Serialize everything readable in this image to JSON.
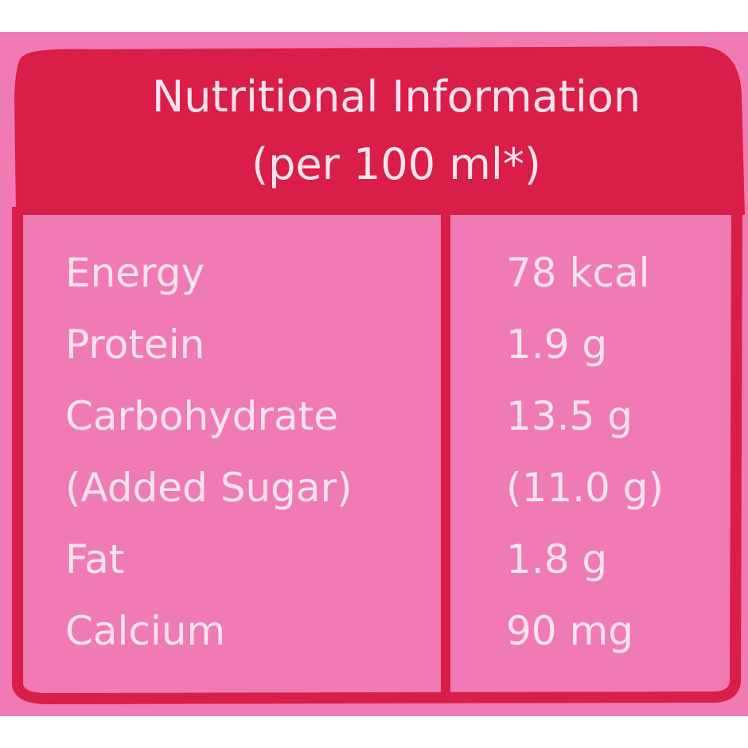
{
  "header": {
    "title": "Nutritional Information",
    "subtitle": "(per 100 ml*)"
  },
  "table": {
    "rows": [
      [
        "Energy",
        "78 kcal"
      ],
      [
        "Protein",
        "1.9 g"
      ],
      [
        "Carbohydrate",
        "13.5 g"
      ],
      [
        "(Added Sugar)",
        "(11.0 g)"
      ],
      [
        "Fat",
        "1.8 g"
      ],
      [
        "Calcium",
        "90 mg"
      ]
    ]
  }
}
